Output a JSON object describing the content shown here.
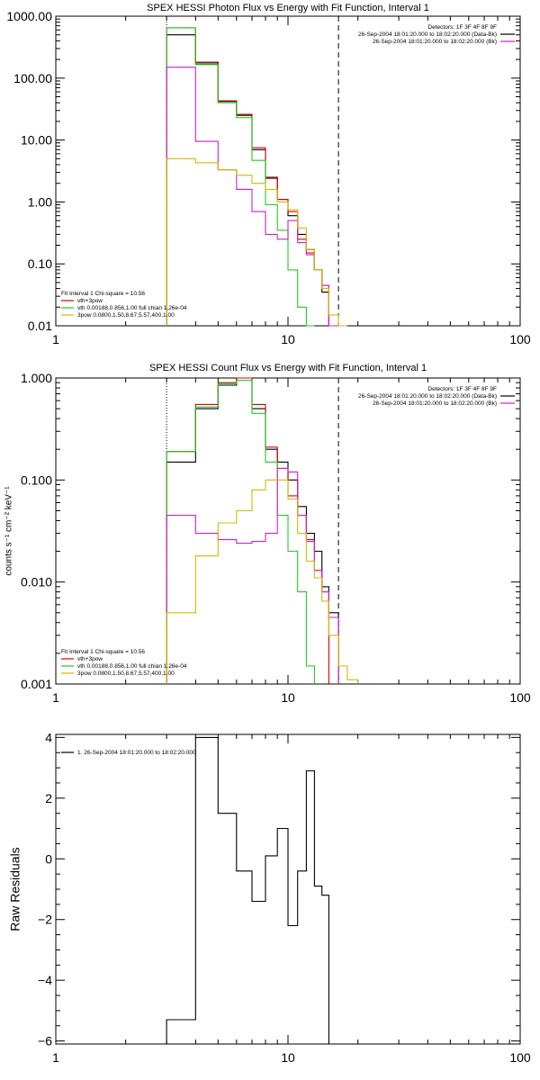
{
  "colors": {
    "black": "#000000",
    "red": "#dd0000",
    "green": "#22cc22",
    "magenta": "#cc22cc",
    "yellow": "#d8b800"
  },
  "chart_data": [
    {
      "type": "line",
      "title": "SPEX HESSI Photon Flux vs Energy with Fit Function, Interval 1",
      "xscale": "log",
      "yscale": "log",
      "xlim": [
        1,
        100
      ],
      "ylim": [
        0.01,
        1000
      ],
      "xticks": [
        1,
        10,
        100
      ],
      "xtick_labels": [
        "1",
        "10",
        "100"
      ],
      "yticks": [
        0.01,
        0.1,
        1,
        10,
        100,
        1000
      ],
      "ytick_labels": [
        "0.01",
        "0.10",
        "1.00",
        "10.00",
        "100.00",
        "1000.00"
      ],
      "vlines": [
        {
          "x": 3,
          "style": "dotted"
        },
        {
          "x": 16.5,
          "style": "dashed"
        }
      ],
      "header_text": [
        "Detectors: 1F 3F 4F 8F 9F",
        "26-Sep-2004 18:01:20.000 to 18:02:20.000 (Data-Bk)",
        "26-Sep-2004 18:01:20.000 to 18:02:20.000 (Bk)"
      ],
      "legend_text": [
        "Fit Interval 1   Chi-square = 10.56",
        "vth+3pow",
        "vth 0.00188,0.856,1.00  full chian 1.26e-04",
        "3pow 0.0800,1.50,8.67,5.57,400,1.00"
      ],
      "edges": [
        3,
        4,
        5,
        6,
        7,
        8,
        9,
        10,
        11,
        12,
        13,
        14,
        15,
        16.5,
        18,
        20,
        22
      ],
      "series": [
        {
          "color": "black",
          "values": [
            500,
            180,
            42,
            25,
            7.0,
            2.5,
            1.1,
            0.6,
            0.3,
            0.17,
            0.08,
            0.035
          ]
        },
        {
          "color": "red",
          "values": [
            650,
            170,
            43,
            26,
            7.5,
            2.4,
            1.1,
            0.7,
            0.25,
            0.15,
            0.08,
            0.045
          ]
        },
        {
          "color": "green",
          "values": [
            650,
            165,
            40,
            23,
            4.7,
            0.9,
            0.35,
            0.08,
            0.02,
            0.005
          ]
        },
        {
          "color": "magenta",
          "values": [
            150,
            9.5,
            3.3,
            1.6,
            0.7,
            0.3,
            0.25,
            0.5,
            0.22,
            0.14,
            0.08,
            0.045,
            0.006
          ]
        },
        {
          "color": "yellow",
          "values": [
            5,
            4.3,
            3.3,
            2.7,
            2.0,
            1.6,
            1.0,
            0.75,
            0.38,
            0.17,
            0.08,
            0.04,
            0.015,
            0.005
          ]
        }
      ]
    },
    {
      "type": "line",
      "title": "SPEX HESSI Count Flux vs Energy with Fit Function, Interval 1",
      "ylabel": "counts s⁻¹ cm⁻² keV⁻¹",
      "xscale": "log",
      "yscale": "log",
      "xlim": [
        1,
        100
      ],
      "ylim": [
        0.001,
        1
      ],
      "xticks": [
        1,
        10,
        100
      ],
      "xtick_labels": [
        "1",
        "10",
        "100"
      ],
      "yticks": [
        0.001,
        0.01,
        0.1,
        1
      ],
      "ytick_labels": [
        "0.001",
        "0.010",
        "0.100",
        "1.000"
      ],
      "vlines": [
        {
          "x": 3,
          "style": "dotted"
        },
        {
          "x": 16.5,
          "style": "dashed"
        }
      ],
      "header_text": [
        "Detectors: 1F 3F 4F 8F 9F",
        "26-Sep-2004 18:01:20.000 to 18:02:20.000 (Data-Bk)",
        "26-Sep-2004 18:01:20.000 to 18:02:20.000 (Bk)"
      ],
      "legend_text": [
        "Fit Interval 1   Chi-square = 10.56",
        "vth+3pow",
        "vth 0.00188,0.856,1.00  full chian 1.26e-04",
        "3pow 0.0800,1.50,8.67,5.57,400,1.00"
      ],
      "edges": [
        3,
        4,
        5,
        6,
        7,
        8,
        9,
        10,
        11,
        12,
        13,
        14,
        15,
        16.5,
        18,
        20,
        22
      ],
      "series": [
        {
          "color": "black",
          "values": [
            0.15,
            0.5,
            0.85,
            1.0,
            0.5,
            0.2,
            0.15,
            0.1,
            0.055,
            0.03,
            0.02,
            0.009,
            0.005
          ]
        },
        {
          "color": "red",
          "values": [
            0.19,
            0.55,
            0.9,
            1.0,
            0.55,
            0.21,
            0.13,
            0.07,
            0.045,
            0.026,
            0.013,
            0.008
          ]
        },
        {
          "color": "green",
          "values": [
            0.19,
            0.52,
            0.88,
            0.95,
            0.45,
            0.15,
            0.045,
            0.02,
            0.008,
            0.0015
          ]
        },
        {
          "color": "magenta",
          "values": [
            0.045,
            0.03,
            0.026,
            0.024,
            0.025,
            0.03,
            0.13,
            0.12,
            0.045,
            0.025,
            0.013,
            0.008,
            0.0045
          ]
        },
        {
          "color": "yellow",
          "values": [
            0.005,
            0.018,
            0.038,
            0.05,
            0.08,
            0.1,
            0.1,
            0.065,
            0.03,
            0.016,
            0.011,
            0.0065,
            0.003,
            0.0015,
            0.0011
          ]
        }
      ]
    },
    {
      "type": "line",
      "ylabel": "Raw Residuals",
      "xscale": "log",
      "xlim": [
        1,
        100
      ],
      "ylim": [
        -6.1,
        4.1
      ],
      "xticks": [
        1,
        10,
        100
      ],
      "xtick_labels": [
        "1",
        "10",
        "100"
      ],
      "yticks": [
        -6,
        -4,
        -2,
        0,
        2,
        4
      ],
      "ytick_labels": [
        "−6",
        "−4",
        "−2",
        "0",
        "2",
        "4"
      ],
      "legend_text": [
        "1. 26-Sep-2004 18:01:20.000 to 18:02:20.000"
      ],
      "edges": [
        3,
        4,
        5,
        6,
        7,
        8,
        9,
        10,
        11,
        12,
        13,
        14,
        15,
        16.5
      ],
      "series": [
        {
          "color": "black",
          "values": [
            -5.3,
            4.0,
            1.5,
            -0.4,
            -1.4,
            0.1,
            1.0,
            -2.2,
            -0.4,
            2.9,
            -0.9,
            -1.2
          ]
        }
      ]
    }
  ]
}
